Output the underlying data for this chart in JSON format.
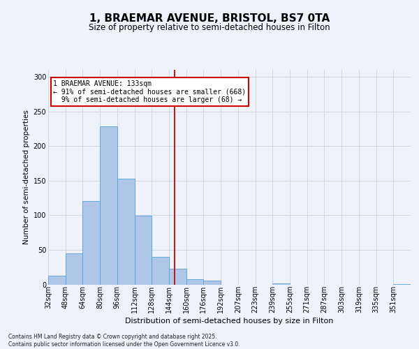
{
  "title": "1, BRAEMAR AVENUE, BRISTOL, BS7 0TA",
  "subtitle": "Size of property relative to semi-detached houses in Filton",
  "xlabel": "Distribution of semi-detached houses by size in Filton",
  "ylabel": "Number of semi-detached properties",
  "bins": [
    "32sqm",
    "48sqm",
    "64sqm",
    "80sqm",
    "96sqm",
    "112sqm",
    "128sqm",
    "144sqm",
    "160sqm",
    "176sqm",
    "192sqm",
    "207sqm",
    "223sqm",
    "239sqm",
    "255sqm",
    "271sqm",
    "287sqm",
    "303sqm",
    "319sqm",
    "335sqm",
    "351sqm"
  ],
  "n_bins": 21,
  "values": [
    13,
    45,
    120,
    228,
    153,
    99,
    40,
    23,
    8,
    6,
    0,
    0,
    0,
    2,
    0,
    0,
    0,
    0,
    0,
    0,
    1
  ],
  "bar_color": "#aec6e8",
  "bar_edge_color": "#5a9fd4",
  "property_size_bin": 7,
  "vline_color": "#cc0000",
  "annotation_line1": "1 BRAEMAR AVENUE: 133sqm",
  "annotation_line2": "← 91% of semi-detached houses are smaller (668)",
  "annotation_line3": "  9% of semi-detached houses are larger (68) →",
  "annotation_box_color": "#ffffff",
  "annotation_box_edge": "#cc0000",
  "ylim": [
    0,
    310
  ],
  "yticks": [
    0,
    50,
    100,
    150,
    200,
    250,
    300
  ],
  "grid_color": "#d0d8e8",
  "footer": "Contains HM Land Registry data © Crown copyright and database right 2025.\nContains public sector information licensed under the Open Government Licence v3.0.",
  "bg_color": "#eef2fa",
  "title_fontsize": 11,
  "subtitle_fontsize": 8.5,
  "tick_fontsize": 7,
  "ylabel_fontsize": 7.5,
  "xlabel_fontsize": 8,
  "annotation_fontsize": 7,
  "footer_fontsize": 5.5
}
